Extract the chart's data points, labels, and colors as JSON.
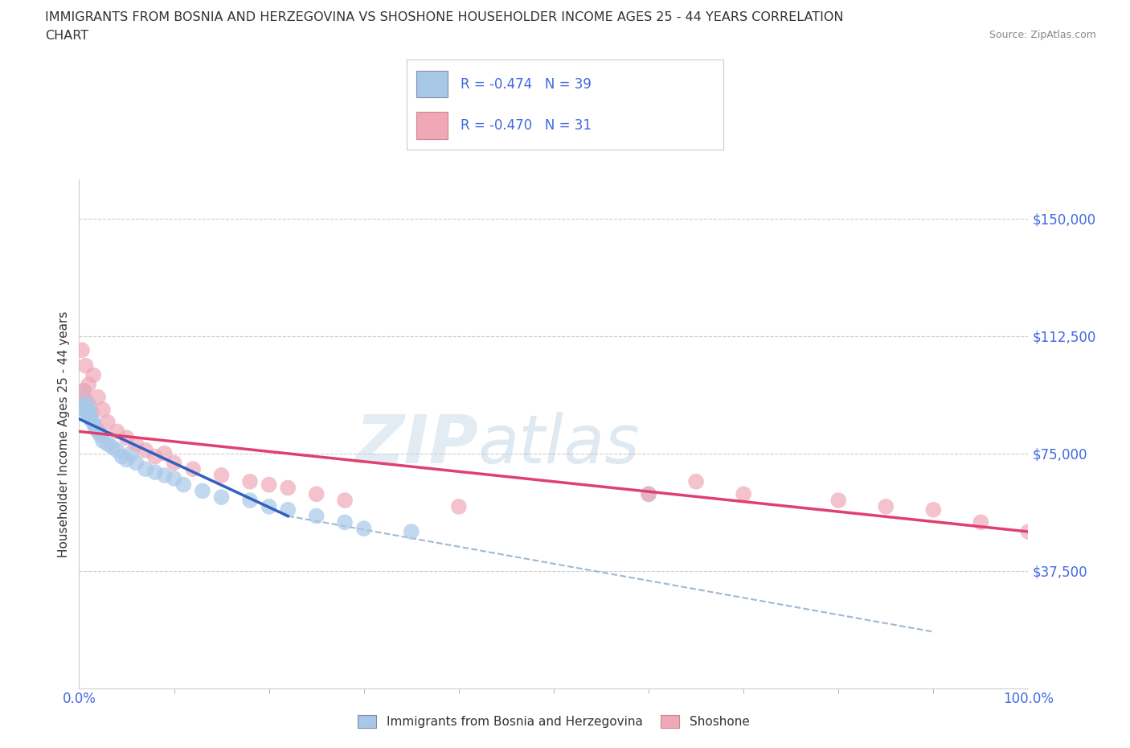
{
  "title_line1": "IMMIGRANTS FROM BOSNIA AND HERZEGOVINA VS SHOSHONE HOUSEHOLDER INCOME AGES 25 - 44 YEARS CORRELATION",
  "title_line2": "CHART",
  "source_text": "Source: ZipAtlas.com",
  "ylabel": "Householder Income Ages 25 - 44 years",
  "xmin": 0.0,
  "xmax": 100.0,
  "ymin": 0,
  "ymax": 162500,
  "yticks": [
    0,
    37500,
    75000,
    112500,
    150000
  ],
  "ytick_labels": [
    "",
    "$37,500",
    "$75,000",
    "$112,500",
    "$150,000"
  ],
  "xticks": [
    0.0,
    100.0
  ],
  "xtick_labels": [
    "0.0%",
    "100.0%"
  ],
  "grid_color": "#cccccc",
  "background_color": "#ffffff",
  "watermark_text1": "ZIP",
  "watermark_text2": "atlas",
  "legend_label1": "Immigrants from Bosnia and Herzegovina",
  "legend_label2": "Shoshone",
  "r1": "-0.474",
  "n1": "39",
  "r2": "-0.470",
  "n2": "31",
  "color_bosnia": "#a8c8e8",
  "color_shoshone": "#f0a8b8",
  "line_color_bosnia": "#3060c0",
  "line_color_shoshone": "#e04070",
  "line_color_dashed": "#a0b8d0",
  "title_color": "#333333",
  "axis_color": "#4169E1",
  "bosnia_scatter_x": [
    0.3,
    0.4,
    0.5,
    0.6,
    0.7,
    0.8,
    0.9,
    1.0,
    1.1,
    1.2,
    1.3,
    1.5,
    1.6,
    1.8,
    2.0,
    2.2,
    2.5,
    3.0,
    3.5,
    4.0,
    4.5,
    5.0,
    5.5,
    6.0,
    7.0,
    8.0,
    9.0,
    10.0,
    11.0,
    13.0,
    15.0,
    18.0,
    20.0,
    22.0,
    25.0,
    28.0,
    30.0,
    35.0,
    60.0
  ],
  "bosnia_scatter_y": [
    90000,
    93000,
    95000,
    89000,
    92000,
    88000,
    91000,
    87000,
    90000,
    86000,
    88000,
    85000,
    84000,
    83000,
    82000,
    81000,
    79000,
    78000,
    77000,
    76000,
    74000,
    73000,
    75000,
    72000,
    70000,
    69000,
    68000,
    67000,
    65000,
    63000,
    61000,
    60000,
    58000,
    57000,
    55000,
    53000,
    51000,
    50000,
    62000
  ],
  "shoshone_scatter_x": [
    0.3,
    0.5,
    0.7,
    1.0,
    1.5,
    2.0,
    2.5,
    3.0,
    4.0,
    5.0,
    6.0,
    7.0,
    8.0,
    9.0,
    10.0,
    12.0,
    15.0,
    18.0,
    20.0,
    22.0,
    25.0,
    28.0,
    40.0,
    60.0,
    65.0,
    70.0,
    80.0,
    85.0,
    90.0,
    95.0,
    100.0
  ],
  "shoshone_scatter_y": [
    108000,
    95000,
    103000,
    97000,
    100000,
    93000,
    89000,
    85000,
    82000,
    80000,
    78000,
    76000,
    74000,
    75000,
    72000,
    70000,
    68000,
    66000,
    65000,
    64000,
    62000,
    60000,
    58000,
    62000,
    66000,
    62000,
    60000,
    58000,
    57000,
    53000,
    50000
  ],
  "bosnia_trend_x": [
    0.0,
    22.0
  ],
  "bosnia_trend_y": [
    86000,
    55000
  ],
  "shoshone_trend_x": [
    0.0,
    100.0
  ],
  "shoshone_trend_y": [
    82000,
    50000
  ],
  "dashed_trend_x": [
    22.0,
    90.0
  ],
  "dashed_trend_y": [
    55000,
    18000
  ]
}
